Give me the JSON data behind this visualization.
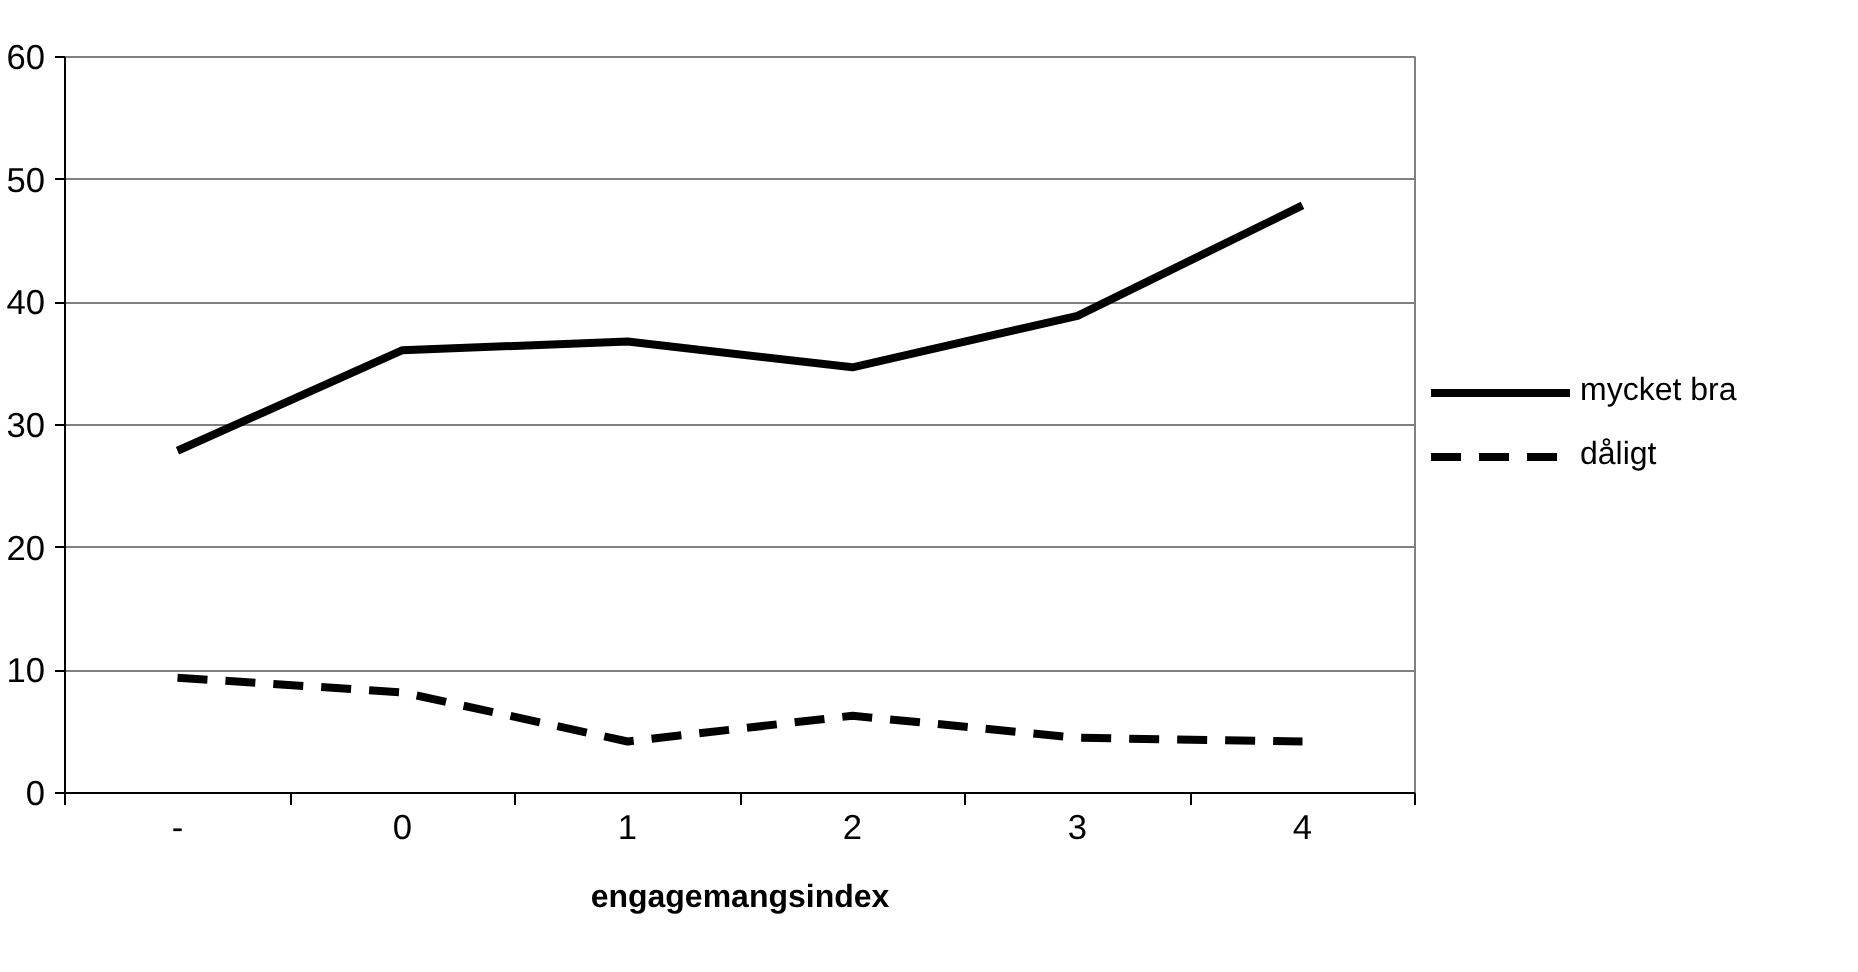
{
  "chart_data": {
    "type": "line",
    "xlabel": "engagemangsindex",
    "categories": [
      "-",
      "0",
      "1",
      "2",
      "3",
      "4"
    ],
    "series": [
      {
        "name": "mycket bra",
        "color": "#000000",
        "line_style": "solid",
        "values": [
          27.9,
          36.1,
          36.8,
          34.7,
          38.9,
          47.9
        ]
      },
      {
        "name": "dåligt",
        "color": "#000000",
        "line_style": "dashed",
        "values": [
          9.4,
          8.2,
          4.2,
          6.3,
          4.5,
          4.2
        ]
      }
    ],
    "ylim": [
      0,
      60
    ],
    "yticks": [
      0,
      10,
      20,
      30,
      40,
      50,
      60
    ],
    "grid": "y",
    "legend": "right",
    "marker": "none"
  }
}
